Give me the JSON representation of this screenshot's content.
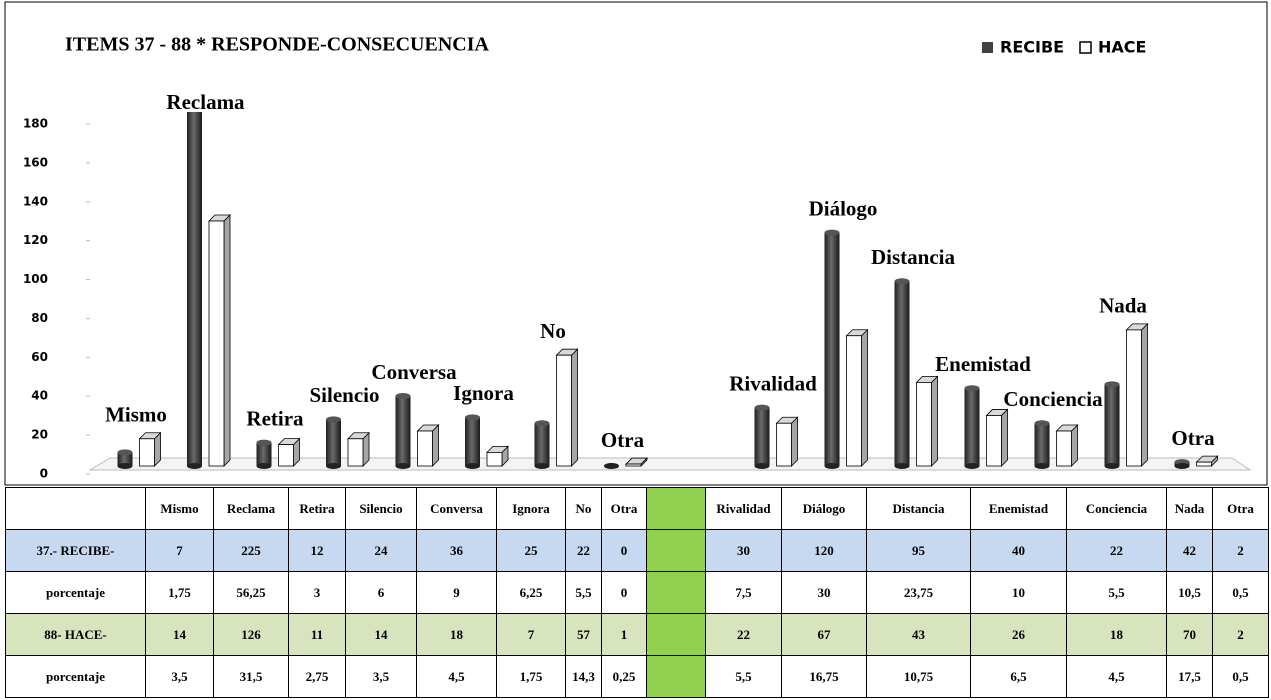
{
  "chart_data": {
    "type": "bar3d",
    "title": "ITEMS 37 - 88 * RESPONDE-CONSECUENCIA",
    "categories": [
      "Mismo",
      "Reclama",
      "Retira",
      "Silencio",
      "Conversa",
      "Ignora",
      "No",
      "Otra",
      "Rivalidad",
      "Diálogo",
      "Distancia",
      "Enemistad",
      "Conciencia",
      "Nada",
      "Otra"
    ],
    "series": [
      {
        "name": "RECIBE",
        "color": "#404040",
        "row_label": "37.- RECIBE-",
        "row_color": "#c6d9f1",
        "values": [
          7,
          225,
          12,
          24,
          36,
          25,
          22,
          0,
          30,
          120,
          95,
          40,
          22,
          42,
          2
        ],
        "percent_label": "porcentaje",
        "percentages": [
          "1,75",
          "56,25",
          "3",
          "6",
          "9",
          "6,25",
          "5,5",
          "0",
          "7,5",
          "30",
          "23,75",
          "10",
          "5,5",
          "10,5",
          "0,5"
        ]
      },
      {
        "name": "HACE",
        "color": "#ffffff",
        "row_label": "88- HACE-",
        "row_color": "#d7e4bd",
        "values": [
          14,
          126,
          11,
          14,
          18,
          7,
          57,
          1,
          22,
          67,
          43,
          26,
          18,
          70,
          2
        ],
        "percent_label": "porcentaje",
        "percentages": [
          "3,5",
          "31,5",
          "2,75",
          "3,5",
          "4,5",
          "1,75",
          "14,3",
          "0,25",
          "5,5",
          "16,75",
          "10,75",
          "6,5",
          "4,5",
          "17,5",
          "0,5"
        ]
      }
    ],
    "ylim": [
      0,
      180
    ],
    "yticks": [
      0,
      20,
      40,
      60,
      80,
      100,
      120,
      140,
      160,
      180
    ],
    "legend": "top-right"
  }
}
